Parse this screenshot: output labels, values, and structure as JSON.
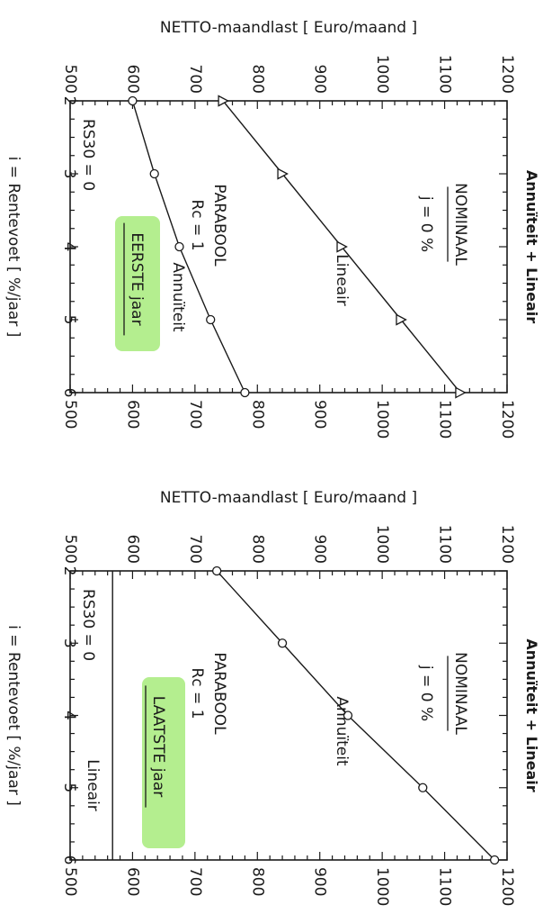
{
  "chart_data": [
    {
      "type": "line",
      "title": "Annuïteit + Lineair",
      "xlabel": "i = Rentevoet [ %/jaar ]",
      "ylabel": "NETTO-maandlast [ Euro/maand ]",
      "xlim": [
        2,
        6
      ],
      "ylim": [
        500,
        1200
      ],
      "x_ticks": [
        "2",
        "3",
        "4",
        "5",
        "6"
      ],
      "y_ticks": [
        "500",
        "600",
        "700",
        "800",
        "900",
        "1000",
        "1100",
        "1200"
      ],
      "annotations": {
        "nominaal": "NOMINAAL",
        "j": "j  =  0  %",
        "parabool": "PARABOOL",
        "rc": "Rc = 1",
        "jaar": "EERSTE  jaar",
        "rs30": "RS30 = 0"
      },
      "series": [
        {
          "name": "Lineair",
          "marker": "triangle",
          "x": [
            2,
            3,
            4,
            5,
            6
          ],
          "y": [
            745,
            840,
            935,
            1030,
            1125
          ]
        },
        {
          "name": "Annuïteit",
          "marker": "circle",
          "x": [
            2,
            3,
            4,
            5,
            6
          ],
          "y": [
            600,
            635,
            675,
            725,
            780
          ]
        }
      ]
    },
    {
      "type": "line",
      "title": "Annuïteit + Lineair",
      "xlabel": "i = Rentevoet [ %/jaar ]",
      "ylabel": "NETTO-maandlast [ Euro/maand ]",
      "xlim": [
        2,
        6
      ],
      "ylim": [
        500,
        1200
      ],
      "x_ticks": [
        "2",
        "3",
        "4",
        "5",
        "6"
      ],
      "y_ticks": [
        "500",
        "600",
        "700",
        "800",
        "900",
        "1000",
        "1100",
        "1200"
      ],
      "annotations": {
        "nominaal": "NOMINAAL",
        "j": "j  =  0  %",
        "parabool": "PARABOOL",
        "rc": "Rc = 1",
        "jaar": "LAATSTE  jaar",
        "rs30": "RS30 = 0"
      },
      "series": [
        {
          "name": "Annuïteit",
          "marker": "circle",
          "x": [
            2,
            3,
            4,
            5,
            6
          ],
          "y": [
            735,
            840,
            945,
            1065,
            1180
          ]
        },
        {
          "name": "Lineair",
          "marker": "none",
          "x": [
            2,
            3,
            4,
            5,
            6
          ],
          "y": [
            568,
            568,
            568,
            568,
            568
          ]
        }
      ]
    }
  ]
}
